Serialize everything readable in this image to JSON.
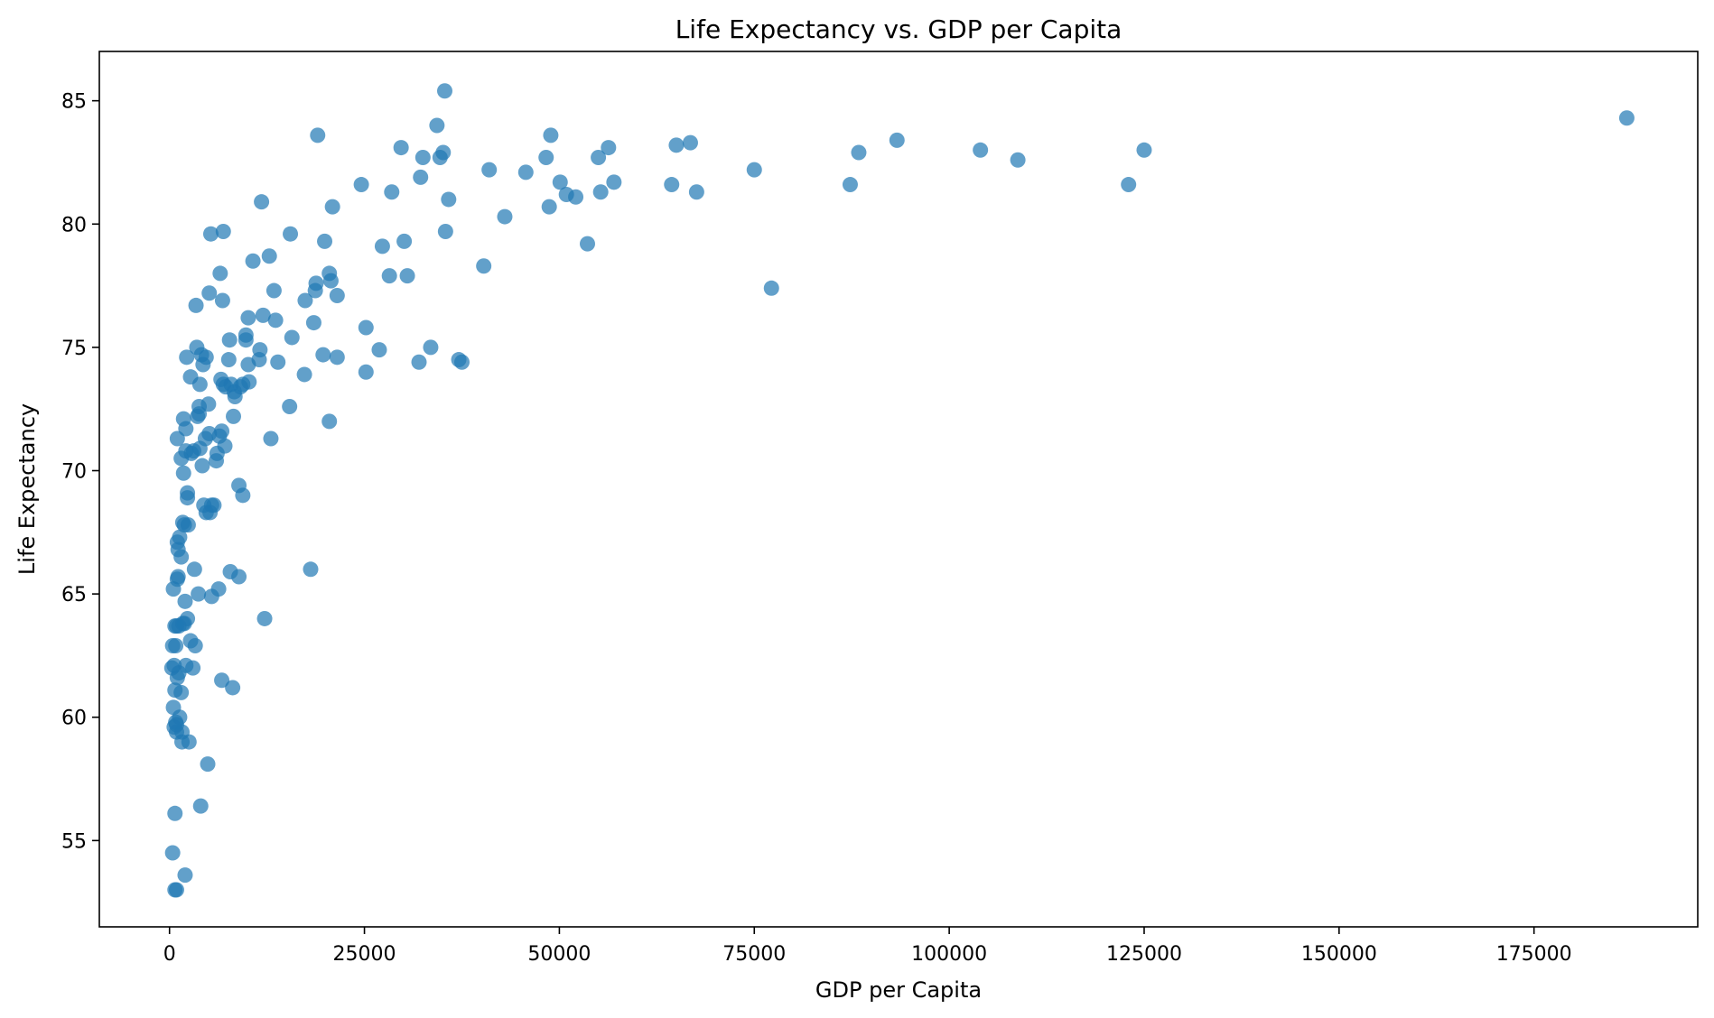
{
  "chart_data": {
    "type": "scatter",
    "title": "Life Expectancy vs. GDP per Capita",
    "xlabel": "GDP per Capita",
    "ylabel": "Life Expectancy",
    "xlim": [
      -9000,
      196000
    ],
    "ylim": [
      51.5,
      87.0
    ],
    "xticks": [
      0,
      25000,
      50000,
      75000,
      100000,
      125000,
      150000,
      175000
    ],
    "yticks": [
      55,
      60,
      65,
      70,
      75,
      80,
      85
    ],
    "grid": false,
    "legend": "none",
    "color": "#1f77b4",
    "series": [
      {
        "points": [
          [
            186900,
            84.3
          ],
          [
            125000,
            83.0
          ],
          [
            123000,
            81.6
          ],
          [
            108800,
            82.6
          ],
          [
            104000,
            83.0
          ],
          [
            93300,
            83.4
          ],
          [
            88400,
            82.9
          ],
          [
            87300,
            81.6
          ],
          [
            77200,
            77.4
          ],
          [
            75000,
            82.2
          ],
          [
            67600,
            81.3
          ],
          [
            66800,
            83.3
          ],
          [
            65000,
            83.2
          ],
          [
            64400,
            81.6
          ],
          [
            57000,
            81.7
          ],
          [
            56300,
            83.1
          ],
          [
            55300,
            81.3
          ],
          [
            55000,
            82.7
          ],
          [
            53600,
            79.2
          ],
          [
            52100,
            81.1
          ],
          [
            50900,
            81.2
          ],
          [
            50100,
            81.7
          ],
          [
            48900,
            83.6
          ],
          [
            48700,
            80.7
          ],
          [
            48300,
            82.7
          ],
          [
            45700,
            82.1
          ],
          [
            43000,
            80.3
          ],
          [
            41000,
            82.2
          ],
          [
            40300,
            78.3
          ],
          [
            37500,
            74.4
          ],
          [
            37100,
            74.5
          ],
          [
            35800,
            81.0
          ],
          [
            35400,
            79.7
          ],
          [
            35300,
            85.4
          ],
          [
            35100,
            82.9
          ],
          [
            34700,
            82.7
          ],
          [
            34300,
            84.0
          ],
          [
            33500,
            75.0
          ],
          [
            32500,
            82.7
          ],
          [
            32200,
            81.9
          ],
          [
            32000,
            74.4
          ],
          [
            30500,
            77.9
          ],
          [
            30100,
            79.3
          ],
          [
            29700,
            83.1
          ],
          [
            28500,
            81.3
          ],
          [
            28200,
            77.9
          ],
          [
            27300,
            79.1
          ],
          [
            26900,
            74.9
          ],
          [
            25200,
            75.8
          ],
          [
            25200,
            74.0
          ],
          [
            24600,
            81.6
          ],
          [
            21500,
            77.1
          ],
          [
            21500,
            74.6
          ],
          [
            20900,
            80.7
          ],
          [
            20700,
            77.7
          ],
          [
            20500,
            78.0
          ],
          [
            20500,
            72.0
          ],
          [
            19900,
            79.3
          ],
          [
            19700,
            74.7
          ],
          [
            19000,
            83.6
          ],
          [
            18800,
            77.6
          ],
          [
            18700,
            77.3
          ],
          [
            18500,
            76.0
          ],
          [
            18100,
            66.0
          ],
          [
            17400,
            76.9
          ],
          [
            17300,
            73.9
          ],
          [
            15700,
            75.4
          ],
          [
            15500,
            79.6
          ],
          [
            15400,
            72.6
          ],
          [
            13900,
            74.4
          ],
          [
            13600,
            76.1
          ],
          [
            13400,
            77.3
          ],
          [
            13000,
            71.3
          ],
          [
            12800,
            78.7
          ],
          [
            12200,
            64.0
          ],
          [
            12000,
            76.3
          ],
          [
            11800,
            80.9
          ],
          [
            11600,
            74.9
          ],
          [
            11500,
            74.5
          ],
          [
            10700,
            78.5
          ],
          [
            10200,
            73.6
          ],
          [
            10100,
            74.3
          ],
          [
            10100,
            76.2
          ],
          [
            9800,
            75.3
          ],
          [
            9800,
            75.5
          ],
          [
            9400,
            73.5
          ],
          [
            9400,
            69.0
          ],
          [
            9100,
            73.4
          ],
          [
            8900,
            65.7
          ],
          [
            8900,
            69.4
          ],
          [
            8400,
            73.0
          ],
          [
            8300,
            73.2
          ],
          [
            8200,
            72.2
          ],
          [
            8100,
            61.2
          ],
          [
            7900,
            73.5
          ],
          [
            7800,
            65.9
          ],
          [
            7700,
            75.3
          ],
          [
            7600,
            74.5
          ],
          [
            7200,
            73.4
          ],
          [
            7100,
            71.0
          ],
          [
            6900,
            79.7
          ],
          [
            6900,
            73.5
          ],
          [
            6800,
            76.9
          ],
          [
            6700,
            61.5
          ],
          [
            6700,
            71.6
          ],
          [
            6600,
            73.7
          ],
          [
            6500,
            78.0
          ],
          [
            6400,
            71.4
          ],
          [
            6300,
            65.2
          ],
          [
            6100,
            70.7
          ],
          [
            6000,
            70.4
          ],
          [
            5700,
            68.6
          ],
          [
            5400,
            68.6
          ],
          [
            5400,
            64.9
          ],
          [
            5300,
            79.6
          ],
          [
            5200,
            68.3
          ],
          [
            5100,
            71.5
          ],
          [
            5100,
            77.2
          ],
          [
            5000,
            72.7
          ],
          [
            4900,
            58.1
          ],
          [
            4700,
            68.3
          ],
          [
            4700,
            74.6
          ],
          [
            4600,
            71.3
          ],
          [
            4400,
            68.6
          ],
          [
            4300,
            74.3
          ],
          [
            4200,
            70.2
          ],
          [
            4100,
            74.7
          ],
          [
            4000,
            56.4
          ],
          [
            3900,
            73.5
          ],
          [
            3900,
            70.9
          ],
          [
            3800,
            72.3
          ],
          [
            3800,
            72.6
          ],
          [
            3700,
            65.0
          ],
          [
            3600,
            72.2
          ],
          [
            3500,
            75.0
          ],
          [
            3400,
            76.7
          ],
          [
            3300,
            62.9
          ],
          [
            3200,
            66.0
          ],
          [
            3100,
            70.8
          ],
          [
            3000,
            62.0
          ],
          [
            2800,
            70.7
          ],
          [
            2700,
            63.1
          ],
          [
            2700,
            73.8
          ],
          [
            2500,
            59.0
          ],
          [
            2400,
            67.8
          ],
          [
            2300,
            68.9
          ],
          [
            2300,
            69.1
          ],
          [
            2300,
            64.0
          ],
          [
            2200,
            74.6
          ],
          [
            2100,
            71.7
          ],
          [
            2100,
            62.1
          ],
          [
            2100,
            70.8
          ],
          [
            2000,
            64.7
          ],
          [
            2000,
            53.6
          ],
          [
            1900,
            63.8
          ],
          [
            1900,
            67.8
          ],
          [
            1800,
            69.9
          ],
          [
            1800,
            72.1
          ],
          [
            1700,
            63.8
          ],
          [
            1700,
            67.9
          ],
          [
            1600,
            59.4
          ],
          [
            1600,
            59.0
          ],
          [
            1500,
            61.0
          ],
          [
            1500,
            66.5
          ],
          [
            1500,
            70.5
          ],
          [
            1300,
            67.3
          ],
          [
            1300,
            60.0
          ],
          [
            1200,
            61.8
          ],
          [
            1200,
            63.7
          ],
          [
            1100,
            66.8
          ],
          [
            1100,
            65.7
          ],
          [
            1000,
            67.1
          ],
          [
            1000,
            71.3
          ],
          [
            1000,
            61.6
          ],
          [
            1000,
            65.6
          ],
          [
            900,
            63.7
          ],
          [
            900,
            59.4
          ],
          [
            900,
            59.7
          ],
          [
            900,
            53.0
          ],
          [
            800,
            59.8
          ],
          [
            800,
            62.9
          ],
          [
            700,
            63.7
          ],
          [
            700,
            53.0
          ],
          [
            700,
            61.1
          ],
          [
            700,
            56.1
          ],
          [
            600,
            59.6
          ],
          [
            600,
            62.1
          ],
          [
            500,
            65.2
          ],
          [
            500,
            60.4
          ],
          [
            400,
            62.9
          ],
          [
            400,
            54.5
          ],
          [
            300,
            62.0
          ]
        ]
      }
    ]
  }
}
